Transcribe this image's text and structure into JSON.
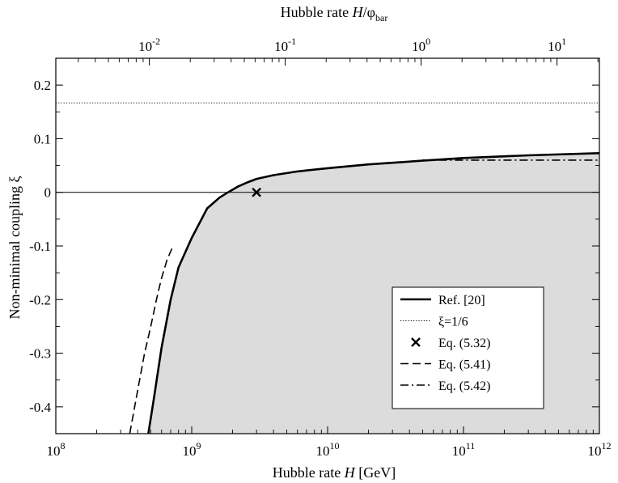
{
  "chart_data": {
    "type": "line",
    "x_axis": {
      "label_prefix": "Hubble rate ",
      "label_var": "H",
      "label_suffix": " [GeV]",
      "scale": "log",
      "range": [
        100000000.0,
        1000000000000.0
      ],
      "major_ticks": [
        {
          "base": "10",
          "exp": "8",
          "value": 100000000.0
        },
        {
          "base": "10",
          "exp": "9",
          "value": 1000000000.0
        },
        {
          "base": "10",
          "exp": "10",
          "value": 10000000000.0
        },
        {
          "base": "10",
          "exp": "11",
          "value": 100000000000.0
        },
        {
          "base": "10",
          "exp": "12",
          "value": 1000000000000.0
        }
      ]
    },
    "x2_axis": {
      "label_prefix": "Hubble rate ",
      "label_var": "H",
      "label_slash": "/φ",
      "label_sub": "bar",
      "scale": "log",
      "range": [
        0.00205,
        20.5
      ],
      "major_ticks": [
        {
          "base": "10",
          "exp": "-2",
          "value": 0.01
        },
        {
          "base": "10",
          "exp": "-1",
          "value": 0.1
        },
        {
          "base": "10",
          "exp": "0",
          "value": 1
        },
        {
          "base": "10",
          "exp": "1",
          "value": 10
        }
      ]
    },
    "y_axis": {
      "label": "Non-minimal coupling ξ",
      "range": [
        -0.45,
        0.25
      ],
      "major_ticks": [
        {
          "label": "-0.4",
          "value": -0.4
        },
        {
          "label": "-0.3",
          "value": -0.3
        },
        {
          "label": "-0.2",
          "value": -0.2
        },
        {
          "label": "-0.1",
          "value": -0.1
        },
        {
          "label": "0",
          "value": 0
        },
        {
          "label": "0.1",
          "value": 0.1
        },
        {
          "label": "0.2",
          "value": 0.2
        }
      ]
    },
    "grid": false,
    "fill_below_series": "Ref. [20]",
    "fill_color": "#dcdcdc",
    "legend": {
      "placement": "bottom-right",
      "entries": [
        {
          "label": "Ref. [20]",
          "style": "solid-thick"
        },
        {
          "label": "ξ=1/6",
          "style": "dotted"
        },
        {
          "label": "Eq. (5.32)",
          "style": "marker-x"
        },
        {
          "label": "Eq. (5.41)",
          "style": "dashed"
        },
        {
          "label": "Eq. (5.42)",
          "style": "dash-dot"
        }
      ]
    },
    "series": [
      {
        "name": "Ref. [20]",
        "style": "solid-thick",
        "x": [
          480000000.0,
          530000000.0,
          600000000.0,
          700000000.0,
          800000000.0,
          1000000000.0,
          1300000000.0,
          1600000000.0,
          1850000000.0,
          2200000000.0,
          2600000000.0,
          3000000000.0,
          4000000000.0,
          6000000000.0,
          10000000000.0,
          20000000000.0,
          50000000000.0,
          100000000000.0,
          300000000000.0,
          1000000000000.0
        ],
        "y": [
          -0.45,
          -0.38,
          -0.29,
          -0.2,
          -0.14,
          -0.085,
          -0.03,
          -0.01,
          0.0,
          0.011,
          0.019,
          0.025,
          0.032,
          0.039,
          0.045,
          0.052,
          0.059,
          0.064,
          0.069,
          0.073
        ]
      },
      {
        "name": "ξ=1/6",
        "style": "dotted",
        "x": [
          100000000.0,
          1000000000000.0
        ],
        "y": [
          0.1667,
          0.1667
        ]
      },
      {
        "name": "Eq. (5.32)",
        "style": "marker-x",
        "x": [
          3000000000.0
        ],
        "y": [
          0.0
        ]
      },
      {
        "name": "Eq. (5.41)",
        "style": "dashed",
        "x": [
          350000000.0,
          400000000.0,
          450000000.0,
          500000000.0,
          550000000.0,
          600000000.0,
          660000000.0,
          730000000.0
        ],
        "y": [
          -0.45,
          -0.37,
          -0.3,
          -0.25,
          -0.2,
          -0.16,
          -0.125,
          -0.1
        ]
      },
      {
        "name": "Eq. (5.42)",
        "style": "dash-dot",
        "x": [
          50000000000.0,
          100000000000.0,
          300000000000.0,
          1000000000000.0
        ],
        "y": [
          0.06,
          0.06,
          0.06,
          0.06
        ]
      }
    ],
    "reference_lines": [
      {
        "axis": "y",
        "value": 0,
        "style": "solid-thin"
      }
    ]
  }
}
